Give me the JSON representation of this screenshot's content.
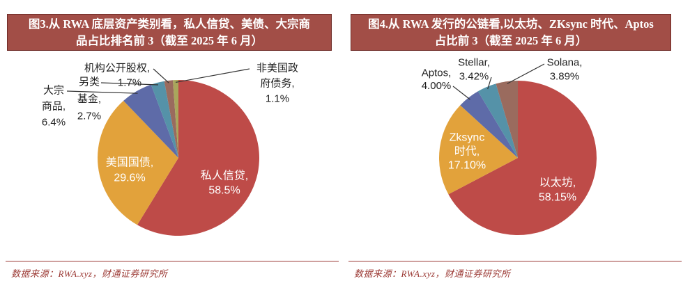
{
  "styles": {
    "title_background": "#A24E47",
    "title_border": "#6E2B27",
    "title_text_color": "#FFFFFF",
    "source_color": "#9C3A35",
    "divider_color": "#9C3A35",
    "outside_label_color": "#1F1F1F",
    "inside_label_color": "#FFFFFF",
    "leader_line_color": "#333333"
  },
  "chart_data": [
    {
      "figure_id": "图3",
      "type": "pie",
      "title": "图3.从 RWA 底层资产类别看，私人信贷、美债、大宗商品占比排名前 3（截至 2025 年 6 月）",
      "title_lines": [
        "图3.从 RWA 底层资产类别看，私人信贷、美债、大宗商",
        "品占比排名前 3（截至 2025 年 6 月）"
      ],
      "source_note": "数据来源：RWA.xyz，财通证券研究所",
      "unit": "%",
      "start_angle_deg": 0,
      "direction": "clockwise",
      "legend": "none",
      "slices": [
        {
          "label": "私人信贷",
          "value": 58.5,
          "display_lines": [
            "私人信贷,",
            "58.5%"
          ],
          "color": "#BE4B48",
          "label_placement": "inside"
        },
        {
          "label": "美国国债",
          "value": 29.6,
          "display_lines": [
            "美国国债,",
            "29.6%"
          ],
          "color": "#E2A23B",
          "label_placement": "inside"
        },
        {
          "label": "大宗商品",
          "value": 6.4,
          "display_lines": [
            "大宗",
            "商品,",
            "6.4%"
          ],
          "color": "#5E6BA8",
          "label_placement": "outside"
        },
        {
          "label": "另类基金",
          "value": 2.7,
          "display_lines": [
            "另类",
            "基金,",
            "2.7%"
          ],
          "color": "#5592A8",
          "label_placement": "outside"
        },
        {
          "label": "机构公开股权",
          "value": 1.7,
          "display_lines": [
            "机构公开股权,",
            "1.7%"
          ],
          "color": "#9A6B5E",
          "label_placement": "outside"
        },
        {
          "label": "非美国政府债务",
          "value": 1.1,
          "display_lines": [
            "非美国政",
            "府债务,",
            "1.1%"
          ],
          "color": "#A9A65C",
          "label_placement": "outside"
        }
      ]
    },
    {
      "figure_id": "图4",
      "type": "pie",
      "title": "图4.从 RWA 发行的公链看,以太坊、ZKsync 时代、Aptos 占比前 3（截至 2025 年 6 月）",
      "title_lines": [
        "图4.从 RWA 发行的公链看,以太坊、ZKsync 时代、Aptos",
        "占比前 3（截至 2025 年 6 月）"
      ],
      "source_note": "数据来源：RWA.xyz，财通证券研究所",
      "unit": "%",
      "start_angle_deg": 0,
      "direction": "clockwise",
      "legend": "none",
      "slices": [
        {
          "label": "以太坊",
          "value": 58.15,
          "display_lines": [
            "以太坊,",
            "58.15%"
          ],
          "color": "#BE4B48",
          "label_placement": "inside"
        },
        {
          "label": "Zksync 时代",
          "value": 17.1,
          "display_lines": [
            "Zksync",
            "时代,",
            "17.10%"
          ],
          "color": "#E2A23B",
          "label_placement": "inside"
        },
        {
          "label": "Aptos",
          "value": 4.0,
          "display_lines": [
            "Aptos,",
            "4.00%"
          ],
          "color": "#5E6BA8",
          "label_placement": "outside"
        },
        {
          "label": "Stellar",
          "value": 3.42,
          "display_lines": [
            "Stellar,",
            "3.42%"
          ],
          "color": "#5592A8",
          "label_placement": "outside"
        },
        {
          "label": "Solana",
          "value": 3.89,
          "display_lines": [
            "Solana,",
            "3.89%"
          ],
          "color": "#9A6B5E",
          "label_placement": "outside"
        }
      ]
    }
  ]
}
